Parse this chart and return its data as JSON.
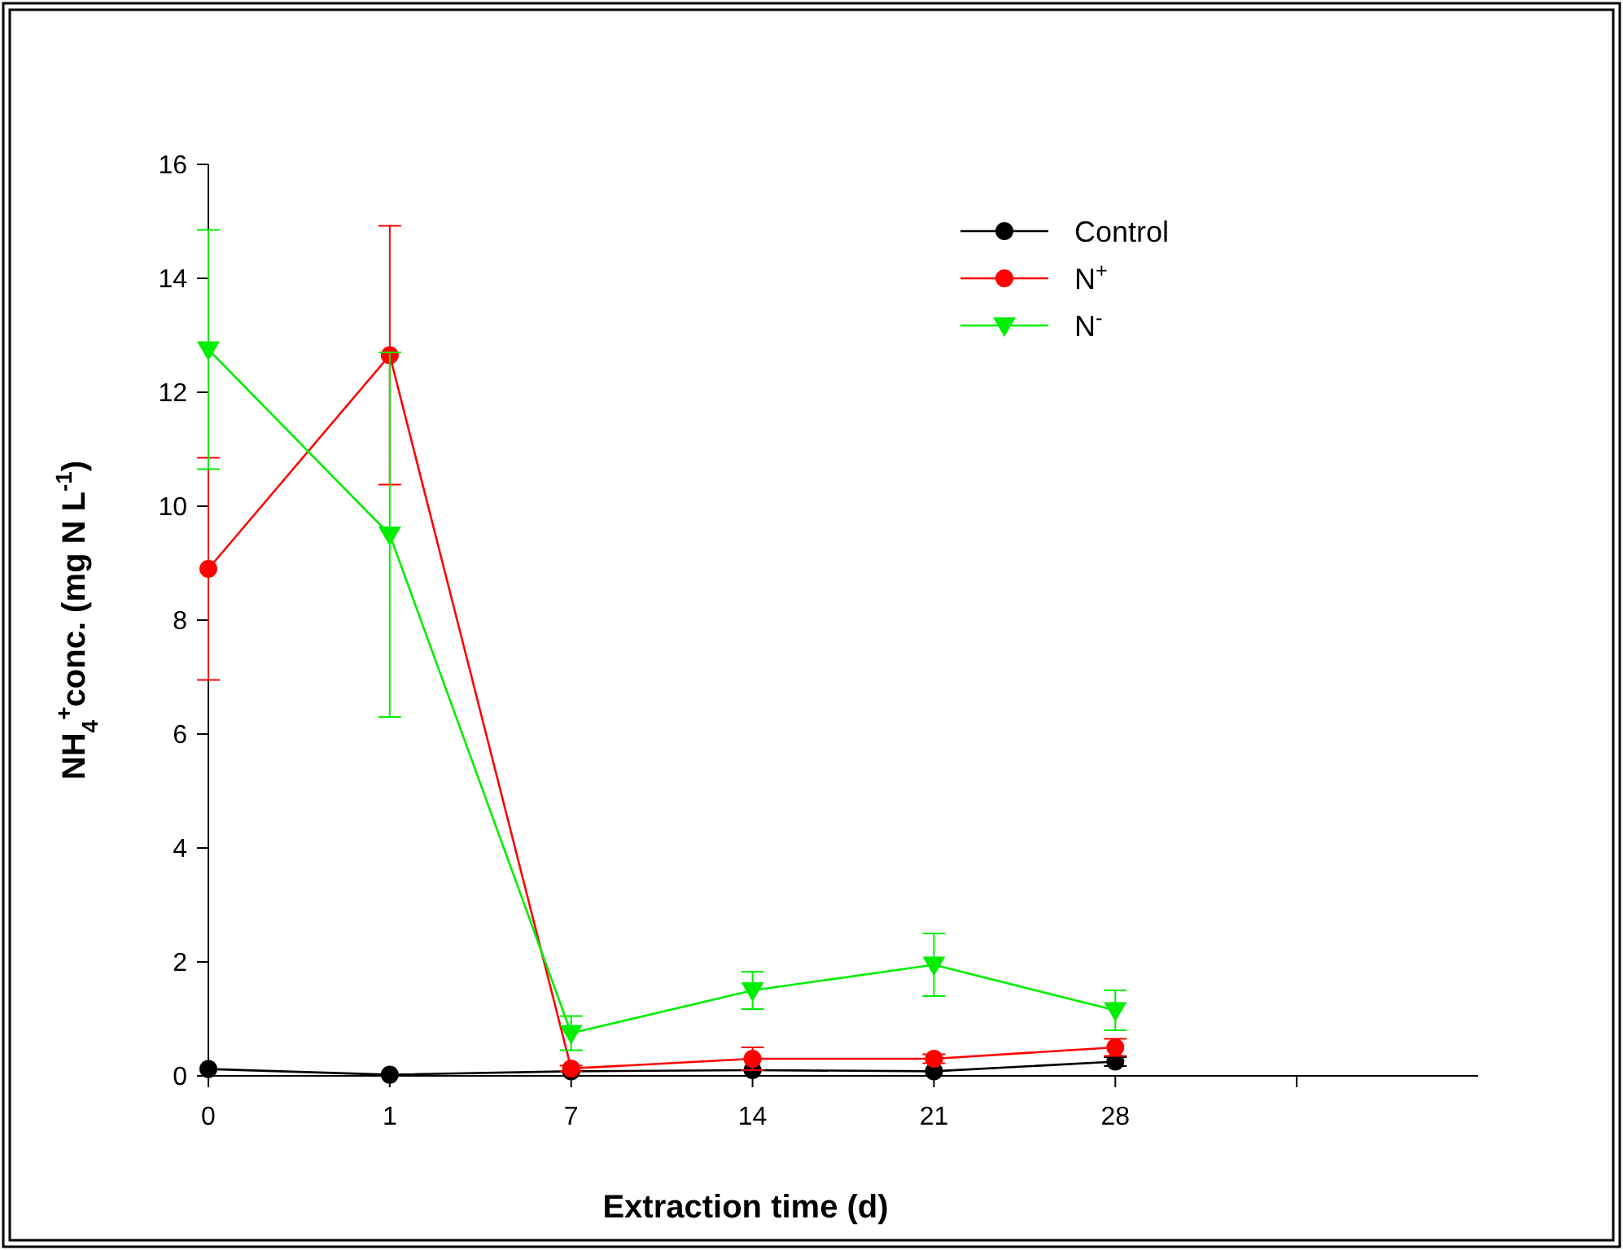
{
  "chart_data": {
    "type": "line",
    "xlabel": "Extraction time (d)",
    "ylabel": "NH$_{4}$$^{+}$conc. (mg N L$^{-1}$)",
    "categories": [
      "0",
      "1",
      "7",
      "14",
      "21",
      "28",
      null
    ],
    "ylim": [
      0,
      16
    ],
    "yticks": [
      0,
      2,
      4,
      6,
      8,
      10,
      12,
      14,
      16
    ],
    "grid": false,
    "legend": "top right",
    "line_style": "solid",
    "series": [
      {
        "name": "Control",
        "color": "#000000",
        "marker": "circle",
        "values": [
          0.12,
          0.02,
          0.08,
          0.1,
          0.08,
          0.25,
          null
        ],
        "errors": [
          null,
          null,
          null,
          null,
          null,
          0.08,
          null
        ]
      },
      {
        "name": "N$^{+}$",
        "color": "#ff0000",
        "marker": "circle",
        "values": [
          8.9,
          12.65,
          0.13,
          0.3,
          0.3,
          0.5,
          null
        ],
        "errors": [
          1.95,
          2.27,
          0.05,
          0.2,
          0.08,
          0.15,
          null
        ]
      },
      {
        "name": "N$^{-}$",
        "color": "#00ee00",
        "marker": "triangle-down",
        "values": [
          12.75,
          9.5,
          0.75,
          1.5,
          1.95,
          1.15,
          null
        ],
        "errors": [
          2.1,
          3.2,
          0.3,
          0.33,
          0.55,
          0.35,
          null
        ]
      }
    ]
  }
}
